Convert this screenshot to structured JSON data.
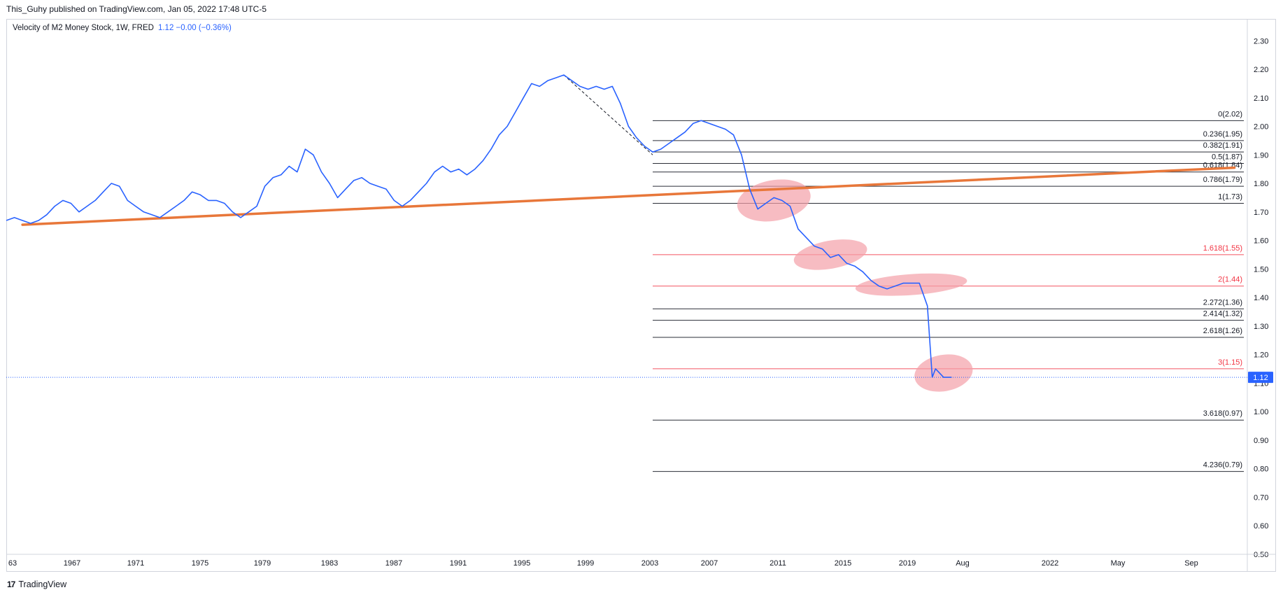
{
  "header": {
    "published": "This_Guhy published on TradingView.com, Jan 05, 2022 17:48 UTC-5"
  },
  "legend": {
    "title": "Velocity of M2 Money Stock, 1W, FRED",
    "values": "1.12  −0.00 (−0.36%)"
  },
  "footer": {
    "logo_mark": "17",
    "brand": "TradingView"
  },
  "colors": {
    "line": "#2962ff",
    "trend": "#e8773a",
    "fib_black": "#131722",
    "fib_red": "#f23645",
    "highlight": "#f4a0a8"
  },
  "chart_data": {
    "type": "line",
    "title": "Velocity of M2 Money Stock, 1W, FRED",
    "x_ticks": [
      "63",
      "1967",
      "1971",
      "1975",
      "1979",
      "1983",
      "1987",
      "1991",
      "1995",
      "1999",
      "2003",
      "2007",
      "2011",
      "2015",
      "2019",
      "Aug",
      "2022",
      "May",
      "Sep"
    ],
    "y_ticks": [
      "2.30",
      "2.20",
      "2.10",
      "2.00",
      "1.90",
      "1.80",
      "1.70",
      "1.60",
      "1.50",
      "1.40",
      "1.30",
      "1.20",
      "1.10",
      "1.00",
      "0.90",
      "0.80",
      "0.70",
      "0.60",
      "0.50"
    ],
    "ylim": [
      0.45,
      2.35
    ],
    "last_value": "1.12",
    "series": [
      {
        "values": [
          [
            1963.0,
            1.67
          ],
          [
            1963.5,
            1.68
          ],
          [
            1964.0,
            1.67
          ],
          [
            1964.5,
            1.66
          ],
          [
            1965.0,
            1.67
          ],
          [
            1965.5,
            1.69
          ],
          [
            1966.0,
            1.72
          ],
          [
            1966.5,
            1.74
          ],
          [
            1967.0,
            1.73
          ],
          [
            1967.5,
            1.7
          ],
          [
            1968.0,
            1.72
          ],
          [
            1968.5,
            1.74
          ],
          [
            1969.0,
            1.77
          ],
          [
            1969.5,
            1.8
          ],
          [
            1970.0,
            1.79
          ],
          [
            1970.5,
            1.74
          ],
          [
            1971.0,
            1.72
          ],
          [
            1971.5,
            1.7
          ],
          [
            1972.0,
            1.69
          ],
          [
            1972.5,
            1.68
          ],
          [
            1973.0,
            1.7
          ],
          [
            1973.5,
            1.72
          ],
          [
            1974.0,
            1.74
          ],
          [
            1974.5,
            1.77
          ],
          [
            1975.0,
            1.76
          ],
          [
            1975.5,
            1.74
          ],
          [
            1976.0,
            1.74
          ],
          [
            1976.5,
            1.73
          ],
          [
            1977.0,
            1.7
          ],
          [
            1977.5,
            1.68
          ],
          [
            1978.0,
            1.7
          ],
          [
            1978.5,
            1.72
          ],
          [
            1979.0,
            1.79
          ],
          [
            1979.5,
            1.82
          ],
          [
            1980.0,
            1.83
          ],
          [
            1980.5,
            1.86
          ],
          [
            1981.0,
            1.84
          ],
          [
            1981.5,
            1.92
          ],
          [
            1982.0,
            1.9
          ],
          [
            1982.5,
            1.84
          ],
          [
            1983.0,
            1.8
          ],
          [
            1983.5,
            1.75
          ],
          [
            1984.0,
            1.78
          ],
          [
            1984.5,
            1.81
          ],
          [
            1985.0,
            1.82
          ],
          [
            1985.5,
            1.8
          ],
          [
            1986.0,
            1.79
          ],
          [
            1986.5,
            1.78
          ],
          [
            1987.0,
            1.74
          ],
          [
            1987.5,
            1.72
          ],
          [
            1988.0,
            1.74
          ],
          [
            1988.5,
            1.77
          ],
          [
            1989.0,
            1.8
          ],
          [
            1989.5,
            1.84
          ],
          [
            1990.0,
            1.86
          ],
          [
            1990.5,
            1.84
          ],
          [
            1991.0,
            1.85
          ],
          [
            1991.5,
            1.83
          ],
          [
            1992.0,
            1.85
          ],
          [
            1992.5,
            1.88
          ],
          [
            1993.0,
            1.92
          ],
          [
            1993.5,
            1.97
          ],
          [
            1994.0,
            2.0
          ],
          [
            1994.5,
            2.05
          ],
          [
            1995.0,
            2.1
          ],
          [
            1995.5,
            2.15
          ],
          [
            1996.0,
            2.14
          ],
          [
            1996.5,
            2.16
          ],
          [
            1997.0,
            2.17
          ],
          [
            1997.5,
            2.18
          ],
          [
            1998.0,
            2.16
          ],
          [
            1998.5,
            2.14
          ],
          [
            1999.0,
            2.13
          ],
          [
            1999.5,
            2.14
          ],
          [
            2000.0,
            2.13
          ],
          [
            2000.5,
            2.14
          ],
          [
            2001.0,
            2.08
          ],
          [
            2001.5,
            2.0
          ],
          [
            2002.0,
            1.96
          ],
          [
            2002.5,
            1.93
          ],
          [
            2003.0,
            1.91
          ],
          [
            2003.5,
            1.92
          ],
          [
            2004.0,
            1.94
          ],
          [
            2004.5,
            1.96
          ],
          [
            2005.0,
            1.98
          ],
          [
            2005.5,
            2.01
          ],
          [
            2006.0,
            2.02
          ],
          [
            2006.5,
            2.01
          ],
          [
            2007.0,
            2.0
          ],
          [
            2007.5,
            1.99
          ],
          [
            2008.0,
            1.97
          ],
          [
            2008.5,
            1.9
          ],
          [
            2009.0,
            1.78
          ],
          [
            2009.5,
            1.71
          ],
          [
            2010.0,
            1.73
          ],
          [
            2010.5,
            1.75
          ],
          [
            2011.0,
            1.74
          ],
          [
            2011.5,
            1.72
          ],
          [
            2012.0,
            1.64
          ],
          [
            2012.5,
            1.61
          ],
          [
            2013.0,
            1.58
          ],
          [
            2013.5,
            1.57
          ],
          [
            2014.0,
            1.54
          ],
          [
            2014.5,
            1.55
          ],
          [
            2015.0,
            1.52
          ],
          [
            2015.5,
            1.51
          ],
          [
            2016.0,
            1.49
          ],
          [
            2016.5,
            1.46
          ],
          [
            2017.0,
            1.44
          ],
          [
            2017.5,
            1.43
          ],
          [
            2018.0,
            1.44
          ],
          [
            2018.5,
            1.45
          ],
          [
            2019.0,
            1.45
          ],
          [
            2019.5,
            1.45
          ],
          [
            2020.0,
            1.37
          ],
          [
            2020.3,
            1.12
          ],
          [
            2020.5,
            1.15
          ],
          [
            2021.0,
            1.12
          ],
          [
            2021.5,
            1.12
          ]
        ]
      }
    ],
    "dashed_segment": [
      [
        1997.5,
        2.18
      ],
      [
        2003.0,
        1.9
      ]
    ],
    "trendline": [
      [
        1964.0,
        1.655
      ],
      [
        2039.0,
        1.855
      ]
    ],
    "fib_levels": [
      {
        "label": "0(2.02)",
        "value": 2.02,
        "color": "black"
      },
      {
        "label": "0.236(1.95)",
        "value": 1.95,
        "color": "black"
      },
      {
        "label": "0.382(1.91)",
        "value": 1.91,
        "color": "black"
      },
      {
        "label": "0.5(1.87)",
        "value": 1.87,
        "color": "black"
      },
      {
        "label": "0.618(1.84)",
        "value": 1.84,
        "color": "black"
      },
      {
        "label": "0.786(1.79)",
        "value": 1.79,
        "color": "black"
      },
      {
        "label": "1(1.73)",
        "value": 1.73,
        "color": "black"
      },
      {
        "label": "1.618(1.55)",
        "value": 1.55,
        "color": "red"
      },
      {
        "label": "2(1.44)",
        "value": 1.44,
        "color": "red"
      },
      {
        "label": "2.272(1.36)",
        "value": 1.36,
        "color": "black"
      },
      {
        "label": "2.414(1.32)",
        "value": 1.32,
        "color": "black"
      },
      {
        "label": "2.618(1.26)",
        "value": 1.26,
        "color": "black"
      },
      {
        "label": "3(1.15)",
        "value": 1.15,
        "color": "red"
      },
      {
        "label": "3.618(0.97)",
        "value": 0.97,
        "color": "black"
      },
      {
        "label": "4.236(0.79)",
        "value": 0.79,
        "color": "black"
      }
    ],
    "fib_start_x": 2003.0,
    "highlights": [
      {
        "x": 2010.5,
        "y": 1.74
      },
      {
        "x": 2014.0,
        "y": 1.55
      },
      {
        "x": 2019.0,
        "y": 1.445
      },
      {
        "x": 2021.0,
        "y": 1.135
      }
    ]
  }
}
